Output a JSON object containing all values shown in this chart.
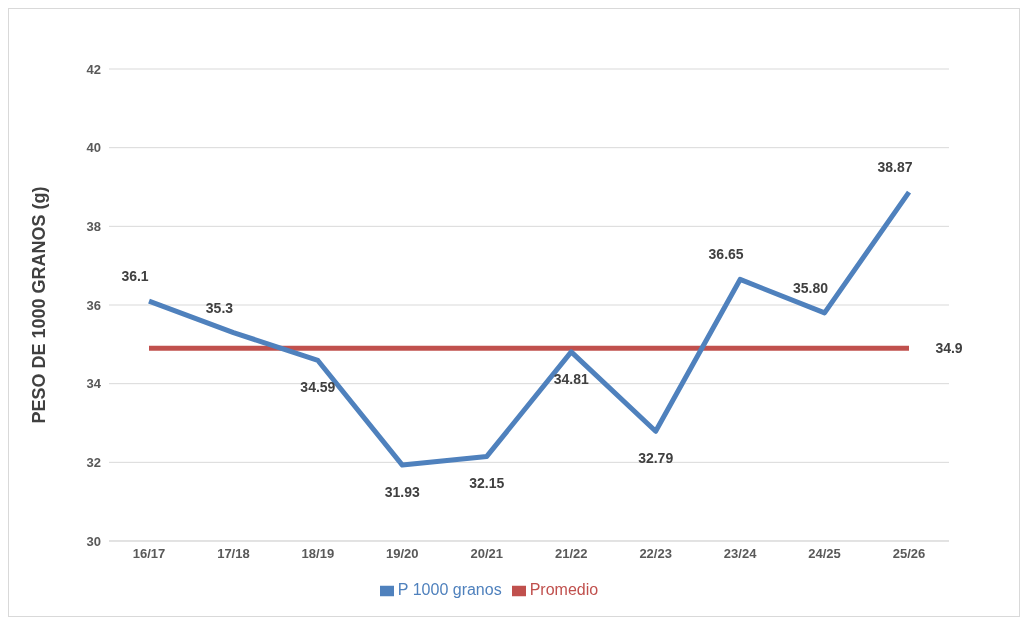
{
  "chart_data": {
    "type": "line",
    "ylabel": "PESO DE 1000 GRANOS (g)",
    "categories": [
      "16/17",
      "17/18",
      "18/19",
      "19/20",
      "20/21",
      "21/22",
      "22/23",
      "23/24",
      "24/25",
      "25/26"
    ],
    "series": [
      {
        "name": "Promedio",
        "color": "#c0504d",
        "values": [
          34.9,
          34.9,
          34.9,
          34.9,
          34.9,
          34.9,
          34.9,
          34.9,
          34.9,
          34.9
        ],
        "value_labels": [
          null,
          null,
          null,
          null,
          null,
          null,
          null,
          null,
          null,
          "34.9"
        ]
      },
      {
        "name": "P 1000 granos",
        "color": "#4f81bd",
        "values": [
          36.1,
          35.3,
          34.59,
          31.93,
          32.15,
          34.81,
          32.79,
          36.65,
          35.8,
          38.87
        ],
        "value_labels": [
          "36.1",
          "35.3",
          "34.59",
          "31.93",
          "32.15",
          "34.81",
          "32.79",
          "36.65",
          "35.80",
          "38.87"
        ]
      }
    ],
    "ylim": [
      30,
      42
    ],
    "yticks": [
      30,
      32,
      34,
      36,
      38,
      40,
      42
    ],
    "grid": "y",
    "legend": "bottom",
    "marker": "none"
  }
}
